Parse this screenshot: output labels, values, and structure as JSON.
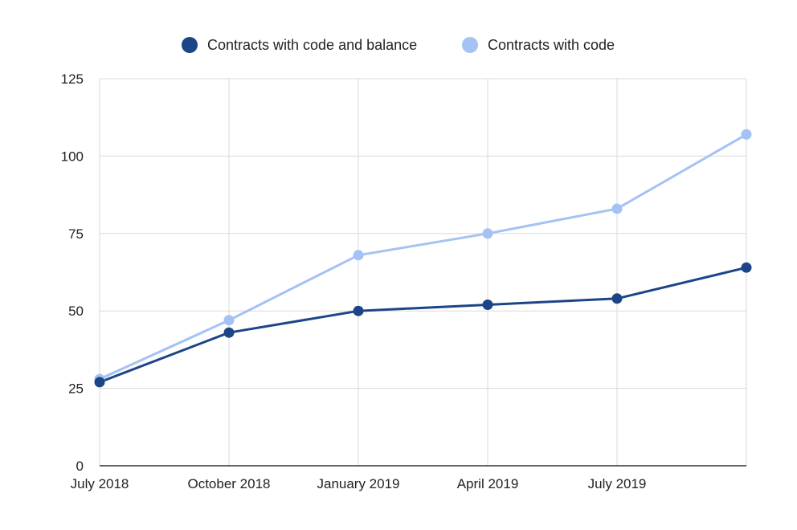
{
  "chart_data": {
    "type": "line",
    "title": "",
    "xlabel": "",
    "ylabel": "",
    "categories": [
      "July 2018",
      "October 2018",
      "January 2019",
      "April 2019",
      "July 2019",
      ""
    ],
    "x_tick_labels": [
      "July 2018",
      "October 2018",
      "January 2019",
      "April 2019",
      "July 2019"
    ],
    "y_ticks": [
      "0",
      "25",
      "50",
      "75",
      "100",
      "125"
    ],
    "ylim": [
      0,
      125
    ],
    "grid": true,
    "legend_position": "top-center",
    "series": [
      {
        "name": "Contracts with code and balance",
        "values": [
          27,
          43,
          50,
          52,
          54,
          64
        ],
        "color": "#1c4587"
      },
      {
        "name": "Contracts with code",
        "values": [
          28,
          47,
          68,
          75,
          83,
          107
        ],
        "color": "#a4c2f4"
      }
    ]
  }
}
